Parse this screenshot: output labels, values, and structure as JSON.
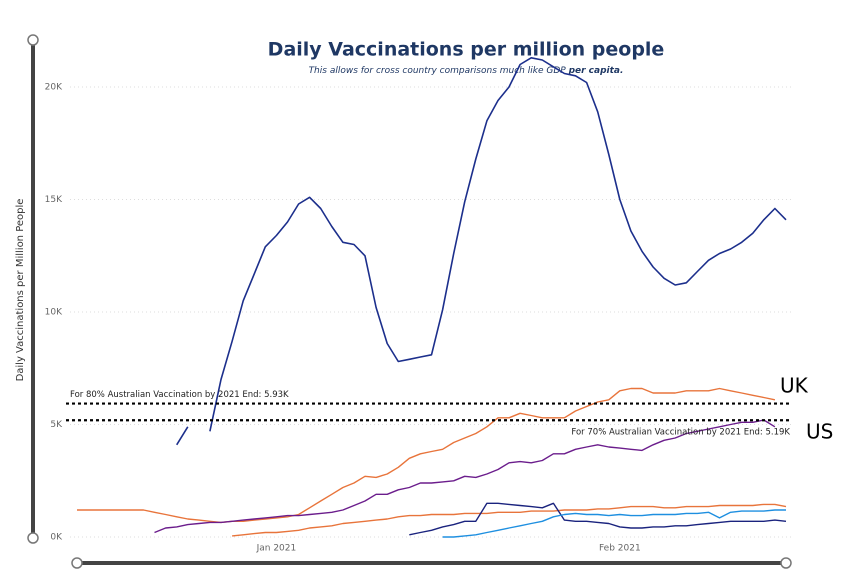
{
  "chart_data": {
    "type": "line",
    "title": "Daily Vaccinations per million people",
    "subtitle": "This allows for cross country comparisons much like GDP",
    "subtitle_emphasis": "per capita.",
    "ylabel": "Daily Vaccinations per Million People",
    "categories": [
      null,
      null,
      null,
      null,
      null,
      null,
      null,
      null,
      null,
      null,
      null,
      null,
      null,
      null,
      null,
      null,
      null,
      null,
      "Jan 2021",
      null,
      null,
      null,
      null,
      null,
      null,
      null,
      null,
      null,
      null,
      null,
      null,
      null,
      null,
      null,
      null,
      null,
      null,
      null,
      null,
      null,
      null,
      null,
      null,
      null,
      null,
      null,
      null,
      null,
      null,
      "Feb 2021",
      null,
      null,
      null,
      null,
      null,
      null,
      null,
      null,
      null,
      null,
      null,
      null,
      null,
      null,
      null
    ],
    "ylim": [
      0,
      22000
    ],
    "yticks": [
      {
        "value": 0,
        "label": "0K"
      },
      {
        "value": 5000,
        "label": "5K"
      },
      {
        "value": 10000,
        "label": "10K"
      },
      {
        "value": 15000,
        "label": "15K"
      },
      {
        "value": 20000,
        "label": "20K"
      }
    ],
    "grid": true,
    "series": [
      {
        "color": "#1c2f8c",
        "values": [
          null,
          null,
          null,
          null,
          null,
          null,
          840,
          null,
          null,
          4100,
          4900,
          null,
          4700,
          7000,
          8700,
          10500,
          11700,
          12900,
          13400,
          14000,
          14800,
          15100,
          14600,
          13800,
          13100,
          13000,
          12500,
          10200,
          8600,
          7800,
          7900,
          8000,
          8100,
          10100,
          12600,
          14900,
          16800,
          18500,
          19400,
          20000,
          21000,
          21300,
          21200,
          20900,
          20600,
          20500,
          20200,
          18900,
          17000,
          15000,
          13600,
          12700,
          12000,
          11500,
          11200,
          11300,
          11800,
          12300,
          12600,
          12800,
          13100,
          13500,
          14100,
          14600,
          14100
        ]
      },
      {
        "color": "#e8743b",
        "values": [
          1200,
          1200,
          1200,
          1200,
          1200,
          1200,
          1200,
          1100,
          1000,
          900,
          800,
          750,
          700,
          650,
          700,
          700,
          750,
          800,
          850,
          900,
          1000,
          1300,
          1600,
          1900,
          2200,
          2400,
          2700,
          2650,
          2800,
          3100,
          3500,
          3700,
          3800,
          3900,
          4200,
          4400,
          4600,
          4900,
          5300,
          5300,
          5500,
          5400,
          5300,
          5300,
          5300,
          5600,
          5800,
          6000,
          6100,
          6500,
          6600,
          6600,
          6400,
          6400,
          6400,
          6500,
          6500,
          6500,
          6600,
          6500,
          6400,
          6300,
          6200,
          6100,
          null
        ]
      },
      {
        "color": "#6b1d8c",
        "values": [
          null,
          null,
          null,
          null,
          null,
          null,
          null,
          200,
          400,
          450,
          550,
          600,
          650,
          650,
          700,
          750,
          800,
          850,
          900,
          950,
          950,
          1000,
          1050,
          1100,
          1200,
          1400,
          1600,
          1900,
          1900,
          2100,
          2200,
          2400,
          2400,
          2450,
          2500,
          2700,
          2650,
          2800,
          3000,
          3300,
          3350,
          3300,
          3400,
          3700,
          3700,
          3900,
          4000,
          4100,
          4000,
          3950,
          3900,
          3850,
          4100,
          4300,
          4400,
          4600,
          4700,
          4800,
          4900,
          5000,
          5100,
          5100,
          5200,
          4900,
          null
        ]
      },
      {
        "color": "#e8743b",
        "values": [
          null,
          null,
          null,
          null,
          null,
          null,
          null,
          null,
          null,
          null,
          null,
          null,
          null,
          null,
          50,
          100,
          150,
          200,
          200,
          250,
          300,
          400,
          450,
          500,
          600,
          650,
          700,
          750,
          800,
          900,
          950,
          950,
          1000,
          1000,
          1000,
          1050,
          1050,
          1050,
          1100,
          1100,
          1100,
          1150,
          1150,
          1150,
          1200,
          1200,
          1200,
          1250,
          1250,
          1300,
          1350,
          1350,
          1350,
          1300,
          1300,
          1350,
          1350,
          1350,
          1400,
          1400,
          1400,
          1400,
          1450,
          1450,
          1350
        ]
      },
      {
        "color": "#1a237e",
        "values": [
          null,
          null,
          null,
          null,
          null,
          null,
          null,
          null,
          null,
          null,
          null,
          null,
          null,
          null,
          null,
          null,
          null,
          null,
          null,
          null,
          null,
          null,
          null,
          null,
          null,
          null,
          null,
          null,
          null,
          null,
          100,
          200,
          300,
          450,
          550,
          700,
          700,
          1500,
          1500,
          1450,
          1400,
          1350,
          1300,
          1500,
          750,
          700,
          700,
          650,
          600,
          450,
          400,
          400,
          450,
          450,
          500,
          500,
          550,
          600,
          650,
          700,
          700,
          700,
          700,
          750,
          700
        ]
      },
      {
        "color": "#1e8fe0",
        "values": [
          null,
          null,
          null,
          null,
          null,
          null,
          null,
          null,
          null,
          null,
          null,
          null,
          null,
          null,
          null,
          null,
          null,
          null,
          null,
          null,
          null,
          null,
          null,
          null,
          null,
          null,
          null,
          null,
          null,
          null,
          null,
          null,
          null,
          0,
          0,
          50,
          100,
          200,
          300,
          400,
          500,
          600,
          700,
          900,
          1000,
          1050,
          1000,
          1000,
          950,
          1000,
          950,
          950,
          1000,
          1000,
          1000,
          1050,
          1050,
          1100,
          850,
          1100,
          1150,
          1150,
          1150,
          1200,
          1200
        ]
      }
    ],
    "reference_lines": [
      {
        "value": 5930,
        "label": "For 80% Australian Vaccination by 2021 End: 5.93K"
      },
      {
        "value": 5190,
        "label": "For 70% Australian Vaccination by 2021 End: 5.19K"
      }
    ],
    "annotations": [
      "UK",
      "US"
    ]
  }
}
